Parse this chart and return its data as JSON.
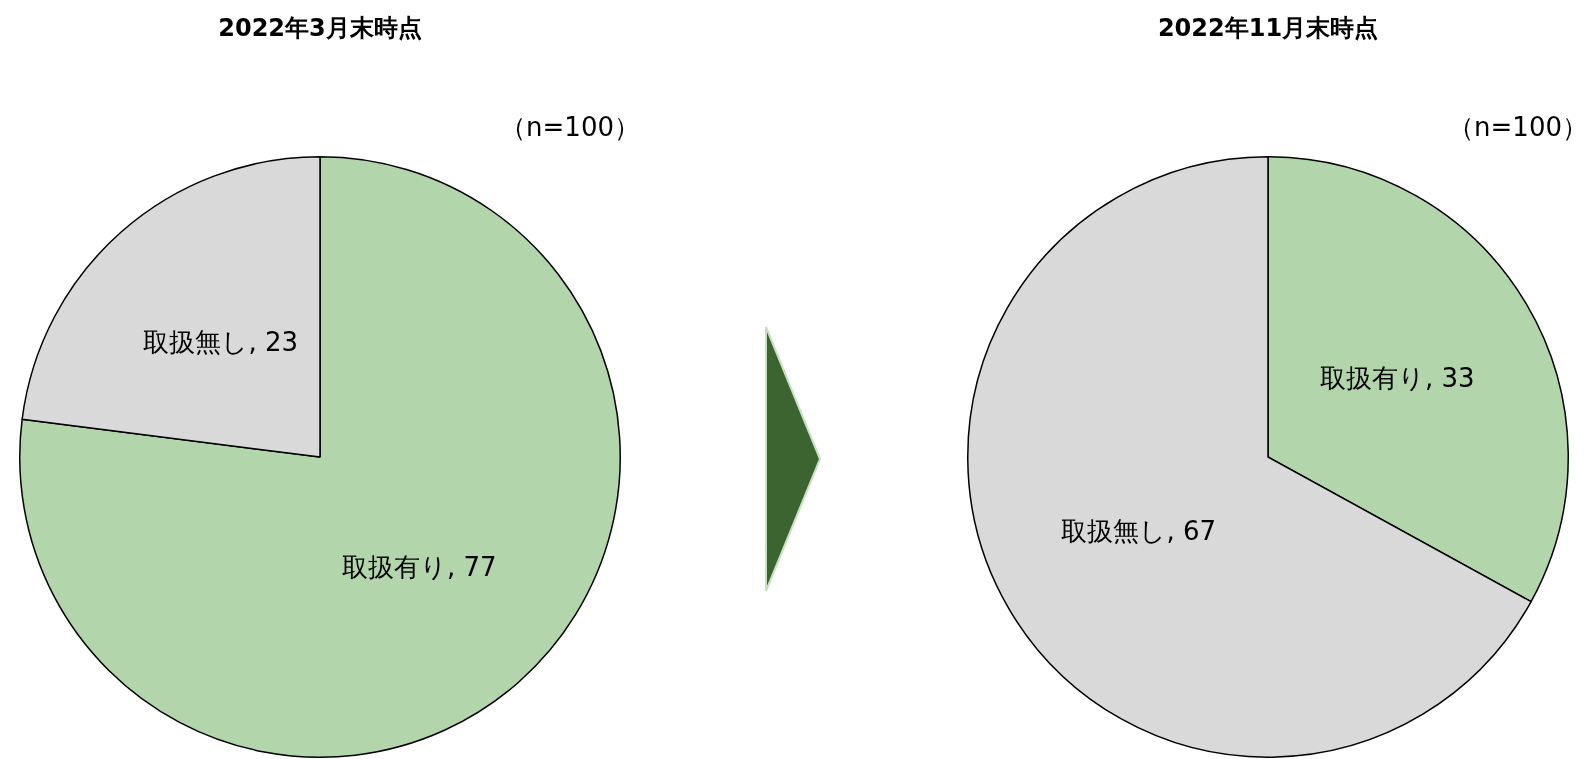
{
  "chart_data": [
    {
      "type": "pie",
      "title": "2022年3月末時点",
      "categories": [
        "取扱有り",
        "取扱無し"
      ],
      "values": [
        77,
        23
      ],
      "value_labels": [
        ", 77",
        ", 23"
      ],
      "colors": [
        "#b3d5ab",
        "#d9d9d9"
      ],
      "annotations": [
        "（n=100）"
      ]
    },
    {
      "type": "pie",
      "title": "2022年11月末時点",
      "categories": [
        "取扱有り",
        "取扱無し"
      ],
      "values": [
        33,
        67
      ],
      "value_labels": [
        ", 33",
        ", 67"
      ],
      "colors": [
        "#b3d5ab",
        "#d9d9d9"
      ],
      "annotations": [
        "（n=100）"
      ]
    }
  ]
}
